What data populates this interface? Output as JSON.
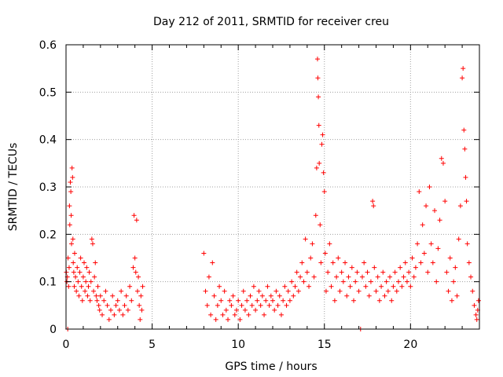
{
  "chart_data": {
    "type": "scatter",
    "title": "Day 212 of 2011, SRMTID for receiver creu",
    "xlabel": "GPS time / hours",
    "ylabel": "SRMTID / TECUs",
    "xlim": [
      0,
      24
    ],
    "ylim": [
      0,
      0.6
    ],
    "xticks": [
      0,
      5,
      10,
      15,
      20
    ],
    "yticks": [
      0,
      0.1,
      0.2,
      0.3,
      0.4,
      0.5,
      0.6
    ],
    "xtick_labels": [
      "0",
      "5",
      "10",
      "15",
      "20"
    ],
    "ytick_labels": [
      "0",
      "0.1",
      "0.2",
      "0.3",
      "0.4",
      "0.5",
      "0.6"
    ],
    "grid": true,
    "marker": "+",
    "color": "#ff0000",
    "series": [
      {
        "name": "SRMTID",
        "points": [
          [
            0.02,
            0.12
          ],
          [
            0.05,
            0.1
          ],
          [
            0.08,
            0.11
          ],
          [
            0.1,
            0.0
          ],
          [
            0.12,
            0.15
          ],
          [
            0.15,
            0.09
          ],
          [
            0.18,
            0.13
          ],
          [
            0.2,
            0.26
          ],
          [
            0.22,
            0.22
          ],
          [
            0.25,
            0.31
          ],
          [
            0.28,
            0.29
          ],
          [
            0.3,
            0.24
          ],
          [
            0.32,
            0.18
          ],
          [
            0.35,
            0.34
          ],
          [
            0.38,
            0.32
          ],
          [
            0.4,
            0.19
          ],
          [
            0.42,
            0.14
          ],
          [
            0.45,
            0.12
          ],
          [
            0.48,
            0.09
          ],
          [
            0.5,
            0.16
          ],
          [
            0.55,
            0.11
          ],
          [
            0.6,
            0.08
          ],
          [
            0.65,
            0.13
          ],
          [
            0.7,
            0.1
          ],
          [
            0.75,
            0.07
          ],
          [
            0.8,
            0.12
          ],
          [
            0.85,
            0.15
          ],
          [
            0.9,
            0.09
          ],
          [
            0.95,
            0.06
          ],
          [
            1.0,
            0.11
          ],
          [
            1.05,
            0.14
          ],
          [
            1.1,
            0.08
          ],
          [
            1.15,
            0.1
          ],
          [
            1.2,
            0.13
          ],
          [
            1.25,
            0.07
          ],
          [
            1.3,
            0.09
          ],
          [
            1.35,
            0.12
          ],
          [
            1.4,
            0.06
          ],
          [
            1.45,
            0.1
          ],
          [
            1.5,
            0.19
          ],
          [
            1.55,
            0.18
          ],
          [
            1.6,
            0.08
          ],
          [
            1.65,
            0.11
          ],
          [
            1.7,
            0.14
          ],
          [
            1.75,
            0.07
          ],
          [
            1.8,
            0.06
          ],
          [
            1.85,
            0.09
          ],
          [
            1.9,
            0.05
          ],
          [
            1.95,
            0.04
          ],
          [
            2.0,
            0.07
          ],
          [
            2.1,
            0.03
          ],
          [
            2.2,
            0.06
          ],
          [
            2.3,
            0.08
          ],
          [
            2.4,
            0.05
          ],
          [
            2.5,
            0.02
          ],
          [
            2.6,
            0.04
          ],
          [
            2.7,
            0.07
          ],
          [
            2.8,
            0.03
          ],
          [
            2.9,
            0.05
          ],
          [
            3.0,
            0.06
          ],
          [
            3.1,
            0.04
          ],
          [
            3.2,
            0.08
          ],
          [
            3.3,
            0.03
          ],
          [
            3.4,
            0.05
          ],
          [
            3.5,
            0.07
          ],
          [
            3.6,
            0.04
          ],
          [
            3.7,
            0.09
          ],
          [
            3.8,
            0.06
          ],
          [
            3.9,
            0.13
          ],
          [
            3.95,
            0.24
          ],
          [
            4.0,
            0.15
          ],
          [
            4.05,
            0.12
          ],
          [
            4.1,
            0.23
          ],
          [
            4.15,
            0.08
          ],
          [
            4.2,
            0.11
          ],
          [
            4.25,
            0.05
          ],
          [
            4.3,
            0.02
          ],
          [
            4.35,
            0.07
          ],
          [
            4.4,
            0.04
          ],
          [
            4.45,
            0.09
          ],
          [
            8.0,
            0.16
          ],
          [
            8.1,
            0.08
          ],
          [
            8.2,
            0.05
          ],
          [
            8.3,
            0.11
          ],
          [
            8.4,
            0.03
          ],
          [
            8.5,
            0.14
          ],
          [
            8.6,
            0.07
          ],
          [
            8.7,
            0.02
          ],
          [
            8.8,
            0.05
          ],
          [
            8.9,
            0.09
          ],
          [
            9.0,
            0.06
          ],
          [
            9.1,
            0.03
          ],
          [
            9.2,
            0.08
          ],
          [
            9.3,
            0.04
          ],
          [
            9.4,
            0.02
          ],
          [
            9.5,
            0.06
          ],
          [
            9.6,
            0.05
          ],
          [
            9.7,
            0.07
          ],
          [
            9.8,
            0.03
          ],
          [
            9.9,
            0.04
          ],
          [
            10.0,
            0.06
          ],
          [
            10.1,
            0.02
          ],
          [
            10.2,
            0.05
          ],
          [
            10.3,
            0.08
          ],
          [
            10.4,
            0.04
          ],
          [
            10.5,
            0.06
          ],
          [
            10.6,
            0.03
          ],
          [
            10.7,
            0.07
          ],
          [
            10.8,
            0.05
          ],
          [
            10.9,
            0.09
          ],
          [
            11.0,
            0.04
          ],
          [
            11.1,
            0.06
          ],
          [
            11.2,
            0.08
          ],
          [
            11.3,
            0.05
          ],
          [
            11.4,
            0.07
          ],
          [
            11.5,
            0.03
          ],
          [
            11.6,
            0.06
          ],
          [
            11.7,
            0.09
          ],
          [
            11.8,
            0.05
          ],
          [
            11.9,
            0.07
          ],
          [
            12.0,
            0.06
          ],
          [
            12.1,
            0.04
          ],
          [
            12.2,
            0.08
          ],
          [
            12.3,
            0.05
          ],
          [
            12.4,
            0.07
          ],
          [
            12.5,
            0.03
          ],
          [
            12.6,
            0.06
          ],
          [
            12.7,
            0.09
          ],
          [
            12.8,
            0.05
          ],
          [
            12.9,
            0.08
          ],
          [
            13.0,
            0.06
          ],
          [
            13.1,
            0.1
          ],
          [
            13.2,
            0.07
          ],
          [
            13.3,
            0.09
          ],
          [
            13.4,
            0.12
          ],
          [
            13.5,
            0.08
          ],
          [
            13.6,
            0.11
          ],
          [
            13.7,
            0.14
          ],
          [
            13.8,
            0.1
          ],
          [
            13.9,
            0.19
          ],
          [
            14.0,
            0.12
          ],
          [
            14.1,
            0.09
          ],
          [
            14.2,
            0.15
          ],
          [
            14.3,
            0.18
          ],
          [
            14.4,
            0.11
          ],
          [
            14.5,
            0.24
          ],
          [
            14.55,
            0.34
          ],
          [
            14.6,
            0.57
          ],
          [
            14.62,
            0.53
          ],
          [
            14.65,
            0.49
          ],
          [
            14.68,
            0.43
          ],
          [
            14.7,
            0.35
          ],
          [
            14.75,
            0.22
          ],
          [
            14.8,
            0.14
          ],
          [
            14.85,
            0.39
          ],
          [
            14.9,
            0.41
          ],
          [
            14.95,
            0.33
          ],
          [
            15.0,
            0.29
          ],
          [
            15.05,
            0.16
          ],
          [
            15.1,
            0.08
          ],
          [
            15.2,
            0.12
          ],
          [
            15.3,
            0.18
          ],
          [
            15.4,
            0.09
          ],
          [
            15.5,
            0.14
          ],
          [
            15.6,
            0.06
          ],
          [
            15.7,
            0.11
          ],
          [
            15.8,
            0.15
          ],
          [
            15.9,
            0.08
          ],
          [
            16.0,
            0.12
          ],
          [
            16.1,
            0.1
          ],
          [
            16.2,
            0.14
          ],
          [
            16.3,
            0.07
          ],
          [
            16.4,
            0.11
          ],
          [
            16.5,
            0.09
          ],
          [
            16.6,
            0.13
          ],
          [
            16.7,
            0.06
          ],
          [
            16.8,
            0.1
          ],
          [
            16.9,
            0.12
          ],
          [
            17.0,
            0.08
          ],
          [
            17.1,
            0.0
          ],
          [
            17.2,
            0.11
          ],
          [
            17.3,
            0.14
          ],
          [
            17.4,
            0.09
          ],
          [
            17.5,
            0.12
          ],
          [
            17.6,
            0.07
          ],
          [
            17.7,
            0.1
          ],
          [
            17.8,
            0.27
          ],
          [
            17.85,
            0.26
          ],
          [
            17.9,
            0.13
          ],
          [
            18.0,
            0.08
          ],
          [
            18.1,
            0.11
          ],
          [
            18.2,
            0.06
          ],
          [
            18.3,
            0.09
          ],
          [
            18.4,
            0.12
          ],
          [
            18.5,
            0.07
          ],
          [
            18.6,
            0.1
          ],
          [
            18.7,
            0.08
          ],
          [
            18.8,
            0.11
          ],
          [
            18.9,
            0.06
          ],
          [
            19.0,
            0.09
          ],
          [
            19.1,
            0.12
          ],
          [
            19.2,
            0.08
          ],
          [
            19.3,
            0.1
          ],
          [
            19.4,
            0.13
          ],
          [
            19.5,
            0.09
          ],
          [
            19.6,
            0.11
          ],
          [
            19.7,
            0.14
          ],
          [
            19.8,
            0.1
          ],
          [
            19.9,
            0.12
          ],
          [
            20.0,
            0.09
          ],
          [
            20.1,
            0.15
          ],
          [
            20.2,
            0.11
          ],
          [
            20.3,
            0.13
          ],
          [
            20.4,
            0.18
          ],
          [
            20.5,
            0.29
          ],
          [
            20.6,
            0.14
          ],
          [
            20.7,
            0.22
          ],
          [
            20.8,
            0.16
          ],
          [
            20.9,
            0.26
          ],
          [
            21.0,
            0.12
          ],
          [
            21.1,
            0.3
          ],
          [
            21.2,
            0.18
          ],
          [
            21.3,
            0.14
          ],
          [
            21.4,
            0.25
          ],
          [
            21.5,
            0.1
          ],
          [
            21.6,
            0.17
          ],
          [
            21.7,
            0.23
          ],
          [
            21.8,
            0.36
          ],
          [
            21.9,
            0.35
          ],
          [
            22.0,
            0.27
          ],
          [
            22.1,
            0.12
          ],
          [
            22.2,
            0.08
          ],
          [
            22.3,
            0.15
          ],
          [
            22.4,
            0.06
          ],
          [
            22.5,
            0.1
          ],
          [
            22.6,
            0.13
          ],
          [
            22.7,
            0.07
          ],
          [
            22.8,
            0.19
          ],
          [
            22.9,
            0.26
          ],
          [
            23.0,
            0.53
          ],
          [
            23.05,
            0.55
          ],
          [
            23.1,
            0.42
          ],
          [
            23.15,
            0.38
          ],
          [
            23.2,
            0.32
          ],
          [
            23.25,
            0.27
          ],
          [
            23.3,
            0.18
          ],
          [
            23.4,
            0.14
          ],
          [
            23.5,
            0.11
          ],
          [
            23.6,
            0.08
          ],
          [
            23.7,
            0.05
          ],
          [
            23.8,
            0.03
          ],
          [
            23.85,
            0.02
          ],
          [
            23.9,
            0.04
          ],
          [
            23.95,
            0.06
          ]
        ]
      }
    ]
  }
}
